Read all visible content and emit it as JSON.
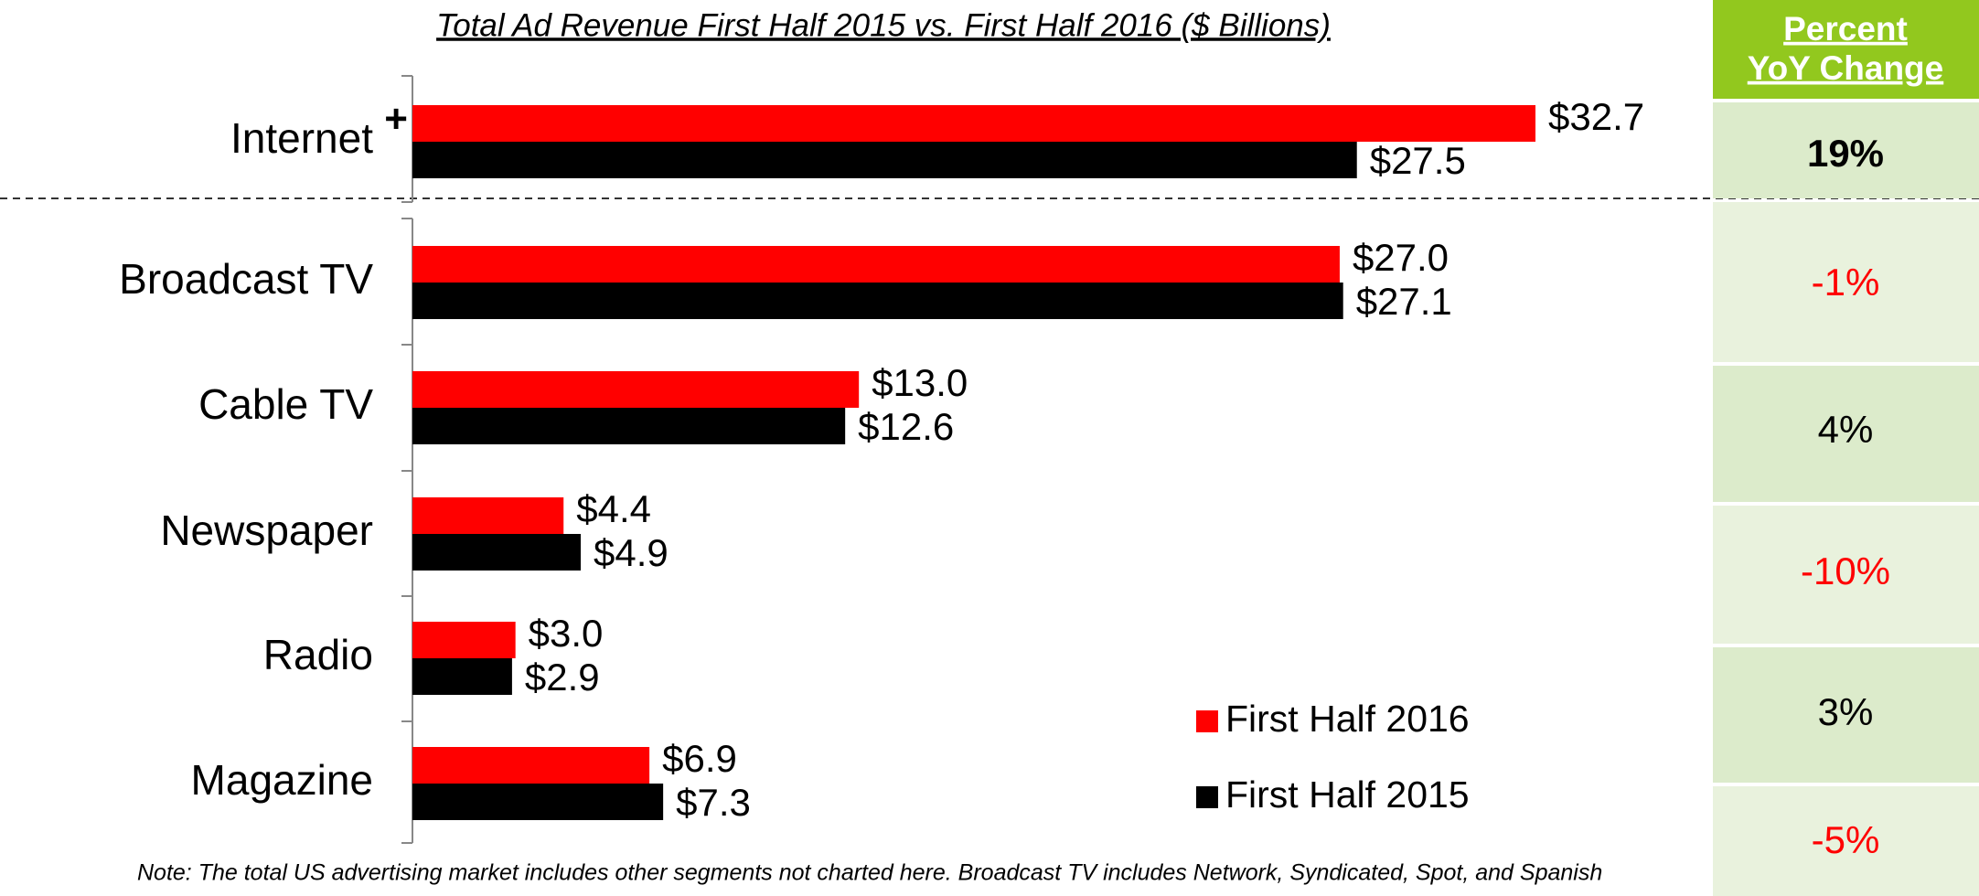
{
  "chart_data": {
    "type": "hbar",
    "title": "Total Ad Revenue First Half 2015 vs. First Half 2016 ($ Billions)",
    "categories": [
      "Internet",
      "Broadcast TV",
      "Cable TV",
      "Newspaper",
      "Radio",
      "Magazine"
    ],
    "category_marker": "+",
    "series": [
      {
        "name": "First Half 2016",
        "color": "#ff0000",
        "values": [
          32.7,
          27.0,
          13.0,
          4.4,
          3.0,
          6.9
        ],
        "value_labels": [
          "$32.7",
          "$27.0",
          "$13.0",
          "$4.4",
          "$3.0",
          "$6.9"
        ]
      },
      {
        "name": "First Half 2015",
        "color": "#000000",
        "values": [
          27.5,
          27.1,
          12.6,
          4.9,
          2.9,
          7.3
        ],
        "value_labels": [
          "$27.5",
          "$27.1",
          "$12.6",
          "$4.9",
          "$2.9",
          "$7.3"
        ]
      }
    ],
    "yoy_header": [
      "Percent",
      "YoY Change"
    ],
    "yoy_values": [
      19,
      -1,
      4,
      -10,
      3,
      -5
    ],
    "yoy_labels": [
      "19%",
      "-1%",
      "4%",
      "-10%",
      "3%",
      "-5%"
    ],
    "negative_color": "#ff0000",
    "note": "Note: The total US advertising market includes other segments not charted here. Broadcast TV includes Network, Syndicated, Spot, and Spanish"
  }
}
